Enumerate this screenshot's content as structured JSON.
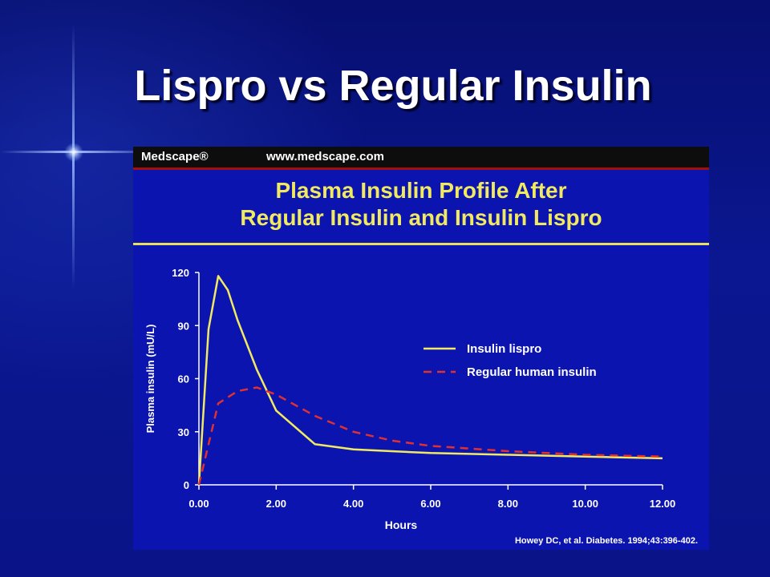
{
  "slide": {
    "title": "Lispro vs Regular Insulin"
  },
  "figure": {
    "brand": "Medscape®",
    "brand_url": "www.medscape.com",
    "title_line1": "Plasma Insulin Profile After",
    "title_line2": "Regular Insulin and Insulin Lispro",
    "citation": "Howey DC, et al. Diabetes. 1994;43:396-402."
  },
  "colors": {
    "lispro": "#f1ea61",
    "regular": "#e03030",
    "axis": "#ffffff"
  },
  "chart_data": {
    "type": "line",
    "title": "Plasma Insulin Profile After Regular Insulin and Insulin Lispro",
    "xlabel": "Hours",
    "ylabel": "Plasma insulin (mU/L)",
    "xlim": [
      0,
      12
    ],
    "ylim": [
      0,
      120
    ],
    "xticks": [
      0,
      2,
      4,
      6,
      8,
      10,
      12
    ],
    "xtick_labels": [
      "0.00",
      "2.00",
      "4.00",
      "6.00",
      "8.00",
      "10.00",
      "12.00"
    ],
    "yticks": [
      0,
      30,
      60,
      90,
      120
    ],
    "ytick_labels": [
      "0",
      "30",
      "60",
      "90",
      "120"
    ],
    "grid": false,
    "legend": "right",
    "series": [
      {
        "name": "Insulin lispro",
        "style": "solid",
        "x": [
          0,
          0.25,
          0.5,
          0.75,
          1.0,
          1.5,
          2.0,
          3.0,
          4.0,
          6.0,
          8.0,
          10.0,
          12.0
        ],
        "y": [
          0,
          88,
          118,
          110,
          93,
          65,
          42,
          23,
          20,
          18,
          17,
          16,
          15
        ]
      },
      {
        "name": "Regular human insulin",
        "style": "dashed",
        "x": [
          0,
          0.5,
          1.0,
          1.5,
          2.0,
          3.0,
          4.0,
          5.0,
          6.0,
          8.0,
          10.0,
          12.0
        ],
        "y": [
          0,
          46,
          53,
          55,
          51,
          39,
          30,
          25,
          22,
          19,
          17,
          16
        ]
      }
    ]
  }
}
